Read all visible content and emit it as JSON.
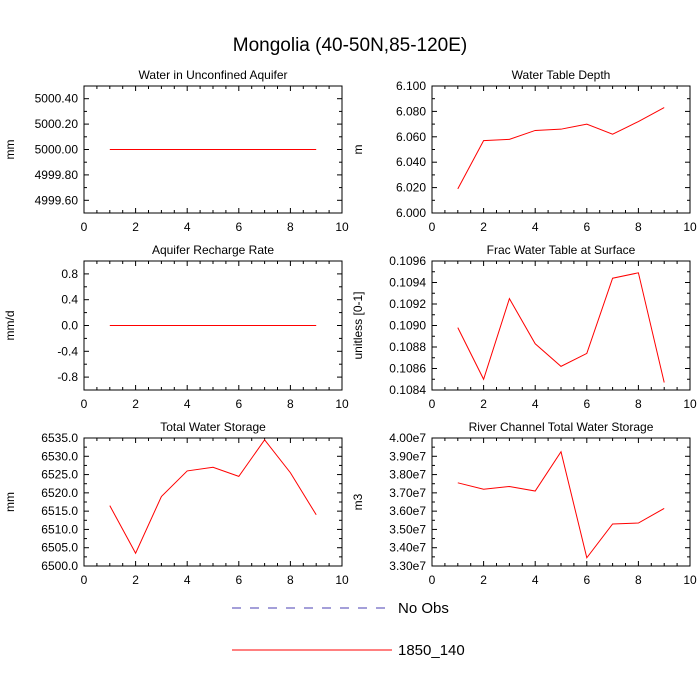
{
  "title": "Mongolia (40-50N,85-120E)",
  "colors": {
    "model": "#ff0000",
    "obs": "#4a3fb3",
    "axis": "#000000"
  },
  "legend": [
    {
      "label": "No Obs",
      "style": "dashed",
      "color": "#4a3fb3"
    },
    {
      "label": "1850_140",
      "style": "solid",
      "color": "#ff0000"
    }
  ],
  "chart_data": [
    {
      "type": "line",
      "title": "Water in Unconfined Aquifer",
      "ylabel": "mm",
      "xlabel": "",
      "xlim": [
        0,
        10
      ],
      "x_ticks": [
        0,
        2,
        4,
        6,
        8,
        10
      ],
      "ylim": [
        4999.5,
        5000.5
      ],
      "y_ticks": [
        4999.6,
        4999.8,
        5000.0,
        5000.2,
        5000.4
      ],
      "y_tick_labels": [
        "4999.60",
        "4999.80",
        "5000.00",
        "5000.20",
        "5000.40"
      ],
      "series": [
        {
          "name": "1850_140",
          "x": [
            1,
            2,
            3,
            4,
            5,
            6,
            7,
            8,
            9
          ],
          "values": [
            5000,
            5000,
            5000,
            5000,
            5000,
            5000,
            5000,
            5000,
            5000
          ]
        }
      ]
    },
    {
      "type": "line",
      "title": "Water Table Depth",
      "ylabel": "m",
      "xlabel": "",
      "xlim": [
        0,
        10
      ],
      "x_ticks": [
        0,
        2,
        4,
        6,
        8,
        10
      ],
      "ylim": [
        6.0,
        6.1
      ],
      "y_ticks": [
        6.0,
        6.02,
        6.04,
        6.06,
        6.08,
        6.1
      ],
      "y_tick_labels": [
        "6.000",
        "6.020",
        "6.040",
        "6.060",
        "6.080",
        "6.100"
      ],
      "series": [
        {
          "name": "1850_140",
          "x": [
            1,
            2,
            3,
            4,
            5,
            6,
            7,
            8,
            9
          ],
          "values": [
            6.019,
            6.057,
            6.058,
            6.065,
            6.066,
            6.07,
            6.062,
            6.072,
            6.083
          ]
        }
      ]
    },
    {
      "type": "line",
      "title": "Aquifer Recharge Rate",
      "ylabel": "mm/d",
      "xlabel": "",
      "xlim": [
        0,
        10
      ],
      "x_ticks": [
        0,
        2,
        4,
        6,
        8,
        10
      ],
      "ylim": [
        -1.0,
        1.0
      ],
      "y_ticks": [
        -0.8,
        -0.4,
        0.0,
        0.4,
        0.8
      ],
      "y_tick_labels": [
        "-0.8",
        "-0.4",
        "0.0",
        "0.4",
        "0.8"
      ],
      "series": [
        {
          "name": "1850_140",
          "x": [
            1,
            2,
            3,
            4,
            5,
            6,
            7,
            8,
            9
          ],
          "values": [
            0,
            0,
            0,
            0,
            0,
            0,
            0,
            0,
            0
          ]
        }
      ]
    },
    {
      "type": "line",
      "title": "Frac Water Table at Surface",
      "ylabel": "unitless [0-1]",
      "xlabel": "",
      "xlim": [
        0,
        10
      ],
      "x_ticks": [
        0,
        2,
        4,
        6,
        8,
        10
      ],
      "ylim": [
        0.1084,
        0.1096
      ],
      "y_ticks": [
        0.1084,
        0.1086,
        0.1088,
        0.109,
        0.1092,
        0.1094,
        0.1096
      ],
      "y_tick_labels": [
        "0.1084",
        "0.1086",
        "0.1088",
        "0.1090",
        "0.1092",
        "0.1094",
        "0.1096"
      ],
      "series": [
        {
          "name": "1850_140",
          "x": [
            1,
            2,
            3,
            4,
            5,
            6,
            7,
            8,
            9
          ],
          "values": [
            0.10898,
            0.1085,
            0.10925,
            0.10883,
            0.10862,
            0.10874,
            0.10944,
            0.10949,
            0.10847
          ]
        }
      ]
    },
    {
      "type": "line",
      "title": "Total Water Storage",
      "ylabel": "mm",
      "xlabel": "",
      "xlim": [
        0,
        10
      ],
      "x_ticks": [
        0,
        2,
        4,
        6,
        8,
        10
      ],
      "ylim": [
        6500,
        6535
      ],
      "y_ticks": [
        6500,
        6505,
        6510,
        6515,
        6520,
        6525,
        6530,
        6535
      ],
      "y_tick_labels": [
        "6500.0",
        "6505.0",
        "6510.0",
        "6515.0",
        "6520.0",
        "6525.0",
        "6530.0",
        "6535.0"
      ],
      "series": [
        {
          "name": "1850_140",
          "x": [
            1,
            2,
            3,
            4,
            5,
            6,
            7,
            8,
            9
          ],
          "values": [
            6516.5,
            6503.5,
            6519.0,
            6526.0,
            6527.0,
            6524.5,
            6534.5,
            6525.5,
            6514.0
          ]
        }
      ]
    },
    {
      "type": "line",
      "title": "River Channel Total Water Storage",
      "ylabel": "m3",
      "xlabel": "",
      "xlim": [
        0,
        10
      ],
      "x_ticks": [
        0,
        2,
        4,
        6,
        8,
        10
      ],
      "ylim": [
        33000000,
        40000000
      ],
      "y_ticks": [
        33000000,
        34000000,
        35000000,
        36000000,
        37000000,
        38000000,
        39000000,
        40000000
      ],
      "y_tick_labels": [
        "3.30e7",
        "3.40e7",
        "3.50e7",
        "3.60e7",
        "3.70e7",
        "3.80e7",
        "3.90e7",
        "4.00e7"
      ],
      "series": [
        {
          "name": "1850_140",
          "x": [
            1,
            2,
            3,
            4,
            5,
            6,
            7,
            8,
            9
          ],
          "values": [
            37550000,
            37200000,
            37350000,
            37100000,
            39250000,
            33450000,
            35300000,
            35350000,
            36150000
          ]
        }
      ]
    }
  ]
}
